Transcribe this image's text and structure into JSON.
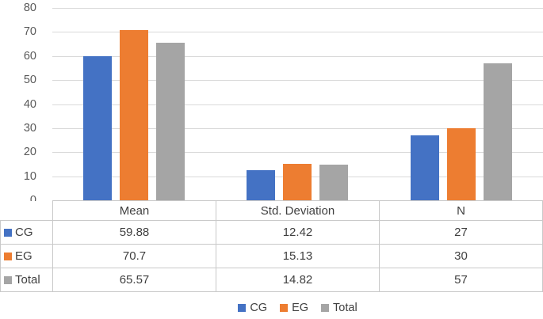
{
  "chart_data": {
    "type": "bar",
    "title": "",
    "xlabel": "",
    "ylabel": "",
    "categories": [
      "Mean",
      "Std. Deviation",
      "N"
    ],
    "series": [
      {
        "name": "CG",
        "color": "#4472C4",
        "values": [
          59.88,
          12.42,
          27
        ]
      },
      {
        "name": "EG",
        "color": "#ED7D31",
        "values": [
          70.7,
          15.13,
          30
        ]
      },
      {
        "name": "Total",
        "color": "#A5A5A5",
        "values": [
          65.57,
          14.82,
          57
        ]
      }
    ],
    "ylim": [
      0,
      80
    ],
    "ytick_step": 10,
    "grid": true,
    "gridline_color": "#d9d9d9",
    "legend_position": "bottom",
    "data_table_shown": true,
    "table": {
      "columns": [
        "Mean",
        "Std. Deviation",
        "N"
      ],
      "rows": [
        {
          "label": "CG",
          "values": [
            "59.88",
            "12.42",
            "27"
          ]
        },
        {
          "label": "EG",
          "values": [
            "70.7",
            "15.13",
            "30"
          ]
        },
        {
          "label": "Total",
          "values": [
            "65.57",
            "14.82",
            "57"
          ]
        }
      ]
    }
  }
}
